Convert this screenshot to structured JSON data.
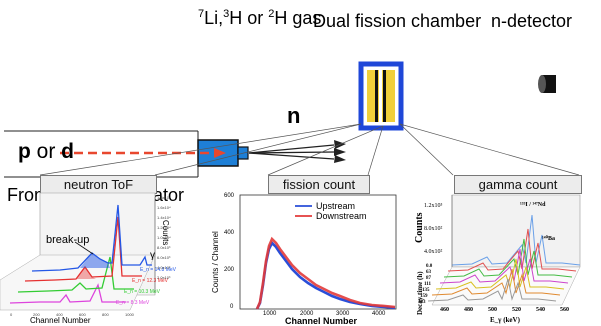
{
  "top": {
    "gas_label": {
      "sup1": "7",
      "part1": "Li,",
      "sup2": "3",
      "part2": "H or ",
      "sup3": "2",
      "part3": "H gas"
    },
    "chamber_label": "Dual fission chamber",
    "detector_label": "n-detector",
    "neutron_label": "n",
    "beam": {
      "p": "p",
      "or": " or ",
      "d": "d"
    },
    "source_label": "From VdG accelerator"
  },
  "panels": {
    "neutron_tof": {
      "title": "neutron ToF",
      "xlabel": "Channel Number",
      "zlabel": "Counts",
      "breakup_label": "break-up",
      "gamma_label": "γ",
      "energy_labels": [
        "E_n = 14.8 MeV",
        "E_n = 12.3 MeV",
        "E_n = 10.3 MeV",
        "E_n = 8.3 MeV"
      ],
      "z_ticks": [
        "1.8x10⁴",
        "1.6x10⁴",
        "1.4x10⁴",
        "1.2x10⁴",
        "1.0x10⁴",
        "8.0x10³",
        "6.0x10³",
        "4.0x10³",
        "2.0x10³"
      ],
      "x_ticks": [
        "0",
        "200",
        "400",
        "600",
        "800",
        "1000"
      ],
      "colors": [
        "#2457e6",
        "#e53030",
        "#33cc33",
        "#dd44dd"
      ]
    },
    "fission_count": {
      "title": "fission count",
      "xlabel": "Channel Number",
      "ylabel": "Counts / Channel",
      "legend": [
        "Upstream",
        "Downstream"
      ],
      "colors": [
        "#2a4ed8",
        "#e23a3a"
      ],
      "x_ticks": [
        "1000",
        "2000",
        "3000",
        "4000"
      ],
      "y_ticks": [
        "0",
        "200",
        "400",
        "600"
      ]
    },
    "gamma_count": {
      "title": "gamma count",
      "ylabel": "Counts",
      "side_label": "Decay time (h)",
      "z_ticks": [
        "1.2x10³",
        "8.0x10²",
        "4.0x10²"
      ],
      "peak_labels": [
        "¹³³I / ¹⁴⁷Nd",
        "¹⁴⁰Ba"
      ],
      "decay_ticks": [
        "0.0",
        "63",
        "87",
        "111",
        "135",
        "159",
        "183"
      ],
      "x_ticks": [
        "460",
        "480",
        "500",
        "520",
        "540",
        "560"
      ],
      "xlabel": "E_γ (keV)"
    }
  }
}
